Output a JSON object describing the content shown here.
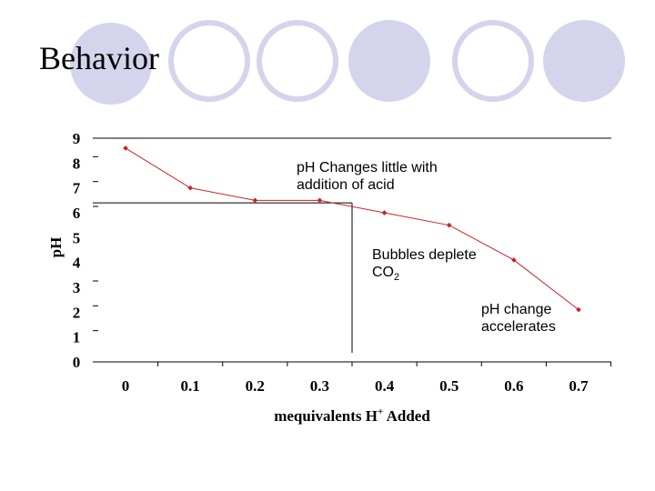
{
  "slide": {
    "title": "Behavior"
  },
  "decor": {
    "circle_color": "#d4d4ec"
  },
  "chart_data": {
    "type": "line",
    "x": [
      0,
      0.1,
      0.2,
      0.3,
      0.4,
      0.5,
      0.6,
      0.7
    ],
    "series": [
      {
        "values": [
          8.6,
          7.0,
          6.5,
          6.5,
          6.0,
          5.5,
          4.1,
          2.1
        ],
        "color": "#cc2222"
      }
    ],
    "xlabel_main": "mequivalents H",
    "xlabel_sup": "+",
    "xlabel_tail": " Added",
    "ylabel": "pH",
    "xticks": [
      "0",
      "0.1",
      "0.2",
      "0.3",
      "0.4",
      "0.5",
      "0.6",
      "0.7"
    ],
    "yticks": [
      "0",
      "1",
      "2",
      "3",
      "4",
      "5",
      "6",
      "7",
      "8",
      "9"
    ],
    "xlim": [
      0,
      0.75
    ],
    "ylim": [
      0,
      9
    ],
    "reference_lines": {
      "x": 0.35,
      "y": 6.4
    },
    "annotations": [
      {
        "line1": "pH Changes little with",
        "line2": "addition of acid"
      },
      {
        "line1": "Bubbles deplete",
        "line2_main": "CO",
        "line2_sub": "2"
      },
      {
        "line1": "pH change",
        "line2": "accelerates"
      }
    ]
  }
}
